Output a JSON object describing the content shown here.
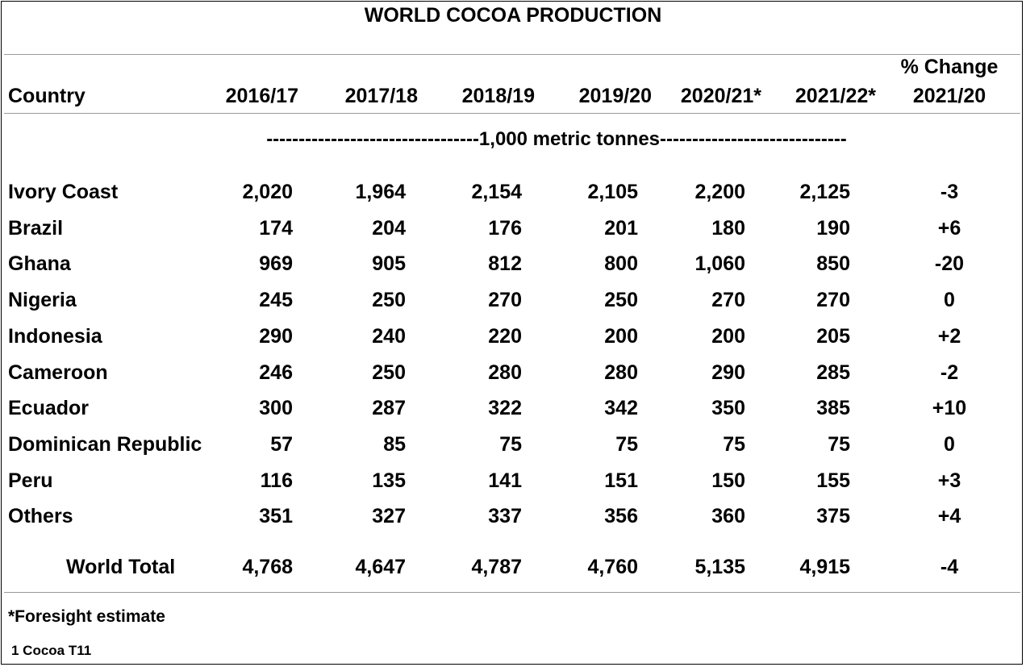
{
  "title": "WORLD COCOA PRODUCTION",
  "headers": {
    "country": "Country",
    "years": [
      "2016/17",
      "2017/18",
      "2018/19",
      "2019/20",
      "2020/21*",
      "2021/22*"
    ],
    "change_line1": "% Change",
    "change_line2": "2021/20"
  },
  "unit_line": "---------------------------------1,000 metric tonnes-----------------------------",
  "rows": [
    {
      "country": "Ivory Coast",
      "values": [
        "2,020",
        "1,964",
        "2,154",
        "2,105",
        "2,200",
        "2,125"
      ],
      "change": "-3"
    },
    {
      "country": "Brazil",
      "values": [
        "174",
        "204",
        "176",
        "201",
        "180",
        "190"
      ],
      "change": "+6"
    },
    {
      "country": "Ghana",
      "values": [
        "969",
        "905",
        "812",
        "800",
        "1,060",
        "850"
      ],
      "change": "-20"
    },
    {
      "country": "Nigeria",
      "values": [
        "245",
        "250",
        "270",
        "250",
        "270",
        "270"
      ],
      "change": "0"
    },
    {
      "country": "Indonesia",
      "values": [
        "290",
        "240",
        "220",
        "200",
        "200",
        "205"
      ],
      "change": "+2"
    },
    {
      "country": "Cameroon",
      "values": [
        "246",
        "250",
        "280",
        "280",
        "290",
        "285"
      ],
      "change": "-2"
    },
    {
      "country": "Ecuador",
      "values": [
        "300",
        "287",
        "322",
        "342",
        "350",
        "385"
      ],
      "change": "+10"
    },
    {
      "country": "Dominican Republic",
      "values": [
        "57",
        "85",
        "75",
        "75",
        "75",
        "75"
      ],
      "change": "0"
    },
    {
      "country": "Peru",
      "values": [
        "116",
        "135",
        "141",
        "151",
        "150",
        "155"
      ],
      "change": "+3"
    },
    {
      "country": "Others",
      "values": [
        "351",
        "327",
        "337",
        "356",
        "360",
        "375"
      ],
      "change": "+4"
    }
  ],
  "total": {
    "label": "World Total",
    "values": [
      "4,768",
      "4,647",
      "4,787",
      "4,760",
      "5,135",
      "4,915"
    ],
    "change": "-4"
  },
  "footnote": "*Foresight estimate",
  "code": "1 Cocoa T11"
}
